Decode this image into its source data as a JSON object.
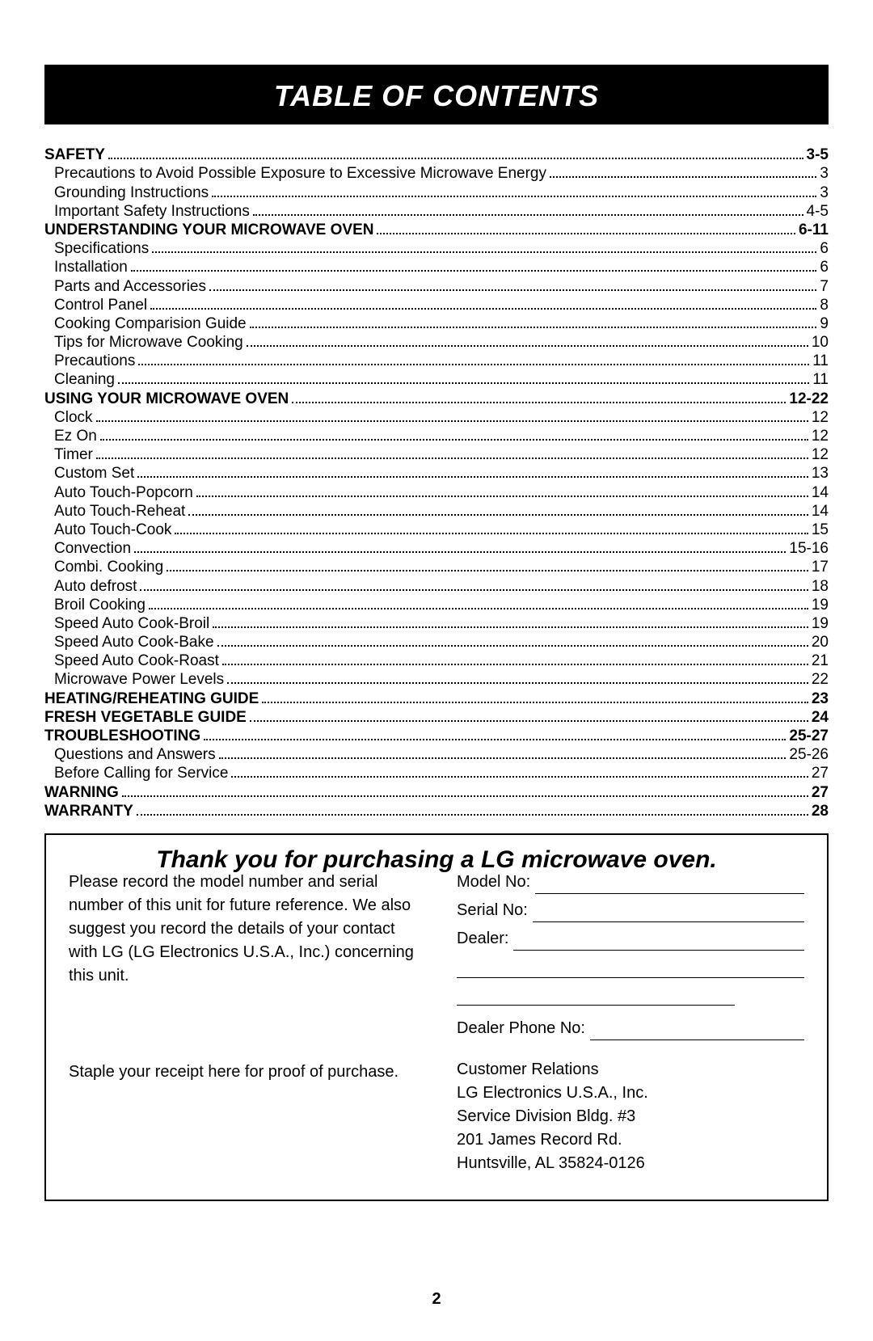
{
  "title": "TABLE OF CONTENTS",
  "toc": [
    {
      "type": "section",
      "label": "SAFETY",
      "page": "3-5"
    },
    {
      "type": "sub",
      "label": "Precautions to Avoid Possible Exposure to Excessive Microwave Energy",
      "page": "3"
    },
    {
      "type": "sub",
      "label": "Grounding Instructions",
      "page": "3"
    },
    {
      "type": "sub",
      "label": "Important Safety Instructions",
      "page": "4-5"
    },
    {
      "type": "section",
      "label": "UNDERSTANDING YOUR MICROWAVE OVEN",
      "page": "6-11"
    },
    {
      "type": "sub",
      "label": "Specifications",
      "page": "6"
    },
    {
      "type": "sub",
      "label": "Installation",
      "page": "6"
    },
    {
      "type": "sub",
      "label": "Parts and Accessories",
      "page": "7"
    },
    {
      "type": "sub",
      "label": "Control Panel",
      "page": "8"
    },
    {
      "type": "sub",
      "label": "Cooking Comparision Guide",
      "page": "9"
    },
    {
      "type": "sub",
      "label": "Tips for Microwave Cooking",
      "page": "10"
    },
    {
      "type": "sub",
      "label": "Precautions",
      "page": "11"
    },
    {
      "type": "sub",
      "label": "Cleaning",
      "page": "11"
    },
    {
      "type": "section",
      "label": "USING YOUR MICROWAVE OVEN",
      "page": "12-22"
    },
    {
      "type": "sub",
      "label": "Clock",
      "page": "12"
    },
    {
      "type": "sub",
      "label": "Ez On",
      "page": "12"
    },
    {
      "type": "sub",
      "label": "Timer",
      "page": "12"
    },
    {
      "type": "sub",
      "label": "Custom Set",
      "page": "13"
    },
    {
      "type": "sub",
      "label": "Auto Touch-Popcorn",
      "page": "14"
    },
    {
      "type": "sub",
      "label": "Auto Touch-Reheat",
      "page": "14"
    },
    {
      "type": "sub",
      "label": "Auto Touch-Cook",
      "page": "15"
    },
    {
      "type": "sub",
      "label": "Convection",
      "page": "15-16"
    },
    {
      "type": "sub",
      "label": "Combi. Cooking",
      "page": "17"
    },
    {
      "type": "sub",
      "label": "Auto defrost",
      "page": "18"
    },
    {
      "type": "sub",
      "label": "Broil Cooking",
      "page": "19"
    },
    {
      "type": "sub",
      "label": "Speed Auto Cook-Broil",
      "page": "19"
    },
    {
      "type": "sub",
      "label": "Speed Auto Cook-Bake",
      "page": "20"
    },
    {
      "type": "sub",
      "label": "Speed Auto Cook-Roast",
      "page": "21"
    },
    {
      "type": "sub",
      "label": "Microwave Power Levels",
      "page": "22"
    },
    {
      "type": "section",
      "label": "HEATING/REHEATING GUIDE",
      "page": "23"
    },
    {
      "type": "section",
      "label": "FRESH VEGETABLE GUIDE",
      "page": "24"
    },
    {
      "type": "section",
      "label": "TROUBLESHOOTING",
      "page": "25-27"
    },
    {
      "type": "sub",
      "label": "Questions and Answers",
      "page": "25-26"
    },
    {
      "type": "sub",
      "label": "Before Calling for Service",
      "page": "27"
    },
    {
      "type": "section",
      "label": "WARNING",
      "page": "27"
    },
    {
      "type": "section",
      "label": "WARRANTY",
      "page": "28"
    }
  ],
  "thankyou": "Thank you for purchasing a LG microwave oven.",
  "left_text": "Please record the model number and serial number of this unit for future reference. We also suggest you record the details of your contact with LG (LG Electronics U.S.A., Inc.) concerning this unit.",
  "receipt_note": "Staple your receipt here for proof of purchase.",
  "fields": {
    "model": "Model No:",
    "serial": "Serial No:",
    "dealer": "Dealer:",
    "dealer_phone": "Dealer Phone No:"
  },
  "address": [
    "Customer Relations",
    "LG Electronics U.S.A., Inc.",
    "Service Division Bldg. #3",
    "201 James Record Rd.",
    "Huntsville, AL 35824-0126"
  ],
  "page_number": "2"
}
